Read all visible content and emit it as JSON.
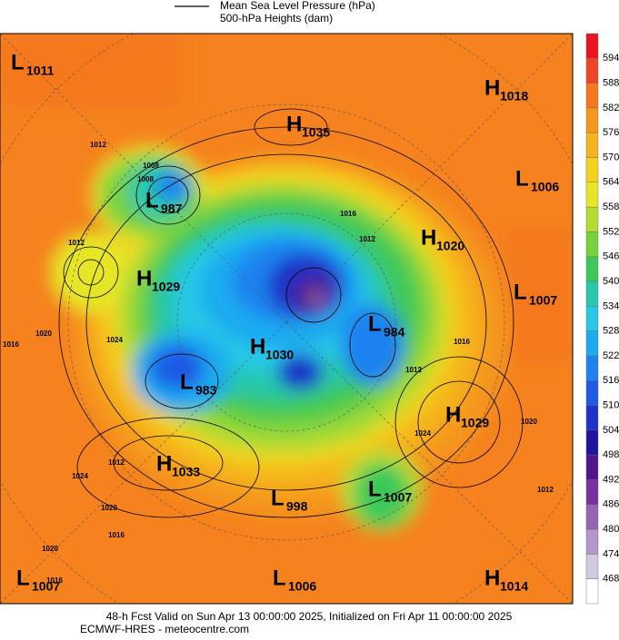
{
  "header": {
    "line_label_1": "Mean Sea Level Pressure (hPa)",
    "line_label_2": "500-hPa Heights (dam)"
  },
  "pressure_centers": [
    {
      "type": "L",
      "value": "1011"
    },
    {
      "type": "H",
      "value": "1018"
    },
    {
      "type": "H",
      "value": "1035"
    },
    {
      "type": "L",
      "value": "1006"
    },
    {
      "type": "L",
      "value": "987"
    },
    {
      "type": "H",
      "value": "1020"
    },
    {
      "type": "H",
      "value": "1029"
    },
    {
      "type": "L",
      "value": "1007"
    },
    {
      "type": "L",
      "value": "984"
    },
    {
      "type": "H",
      "value": "1030"
    },
    {
      "type": "L",
      "value": "983"
    },
    {
      "type": "H",
      "value": "1029"
    },
    {
      "type": "H",
      "value": "1033"
    },
    {
      "type": "L",
      "value": "1007"
    },
    {
      "type": "L",
      "value": "998"
    },
    {
      "type": "L",
      "value": "1007"
    },
    {
      "type": "L",
      "value": "1006"
    },
    {
      "type": "H",
      "value": "1014"
    }
  ],
  "contour_labels": [
    "1012",
    "1008",
    "1012",
    "1008",
    "1016",
    "1012",
    "1024",
    "1020",
    "1016",
    "1016",
    "1012",
    "1024",
    "1020",
    "1020",
    "1016",
    "1012",
    "1024",
    "1020",
    "1016",
    "1012"
  ],
  "colorbar": {
    "labels": [
      "594",
      "588",
      "582",
      "576",
      "570",
      "564",
      "558",
      "552",
      "546",
      "540",
      "534",
      "528",
      "522",
      "516",
      "510",
      "504",
      "498",
      "492",
      "486",
      "480",
      "474",
      "468"
    ],
    "colors": [
      "#e8141e",
      "#f04628",
      "#f5781e",
      "#f5961e",
      "#f5b41e",
      "#f5d21e",
      "#e6e628",
      "#b4dc32",
      "#78d23c",
      "#3cc85a",
      "#28c8aa",
      "#28c8e6",
      "#1eaaf0",
      "#1e82f0",
      "#1e5ae6",
      "#1e32c8",
      "#1e14a0",
      "#50148c",
      "#7832a0",
      "#9664b4",
      "#b496c8",
      "#d2c8e1",
      "#ffffff"
    ]
  },
  "footer": {
    "line_1": "48-h Fcst Valid on Sun Apr 13 00:00:00 2025, Initialized on Fri Apr 11 00:00:00 2025",
    "line_2": "ECMWF-HRES  - meteocentre.com"
  }
}
